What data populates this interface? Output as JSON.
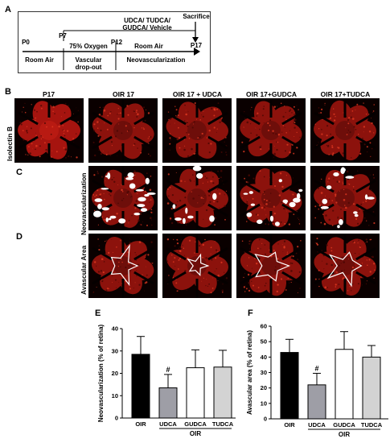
{
  "panel_labels": {
    "a": "A",
    "b": "B",
    "c": "C",
    "d": "D",
    "e": "E",
    "f": "F"
  },
  "timeline": {
    "treatment": "UDCA/ TUDCA/\nGUDCA/ Vehicle",
    "sacrifice": "Sacrifice",
    "p0": "P0",
    "p7": "P7",
    "p12": "P12",
    "p17": "P17",
    "room_air_1": "Room Air",
    "oxygen": "75% Oxygen",
    "room_air_2": "Room Air",
    "vascular_dropout": "Vascular\ndrop-out",
    "neovascularization": "Neovascularization"
  },
  "grid": {
    "columns": [
      "P17",
      "OIR 17",
      "OIR 17 + UDCA",
      "OIR 17+GUDCA",
      "OIR 17+TUDCA"
    ],
    "rows": [
      "Isolectin B",
      "Neovascularization",
      "Avascular Area"
    ]
  },
  "chart_data": [
    {
      "type": "bar",
      "ylabel": "Neovascularization (% of retina)",
      "categories": [
        "OIR",
        "UDCA",
        "GUDCA",
        "TUDCA"
      ],
      "group_label": "OIR",
      "values": [
        28.5,
        13.5,
        22.5,
        22.8
      ],
      "errors": [
        8.0,
        6.0,
        8.0,
        7.5
      ],
      "colors": [
        "#000000",
        "#9e9ea6",
        "#ffffff",
        "#d3d3d3"
      ],
      "annotations": [
        {
          "category": "UDCA",
          "text": "#"
        }
      ],
      "ylim": [
        0,
        40
      ],
      "yticks": [
        0,
        10,
        20,
        30,
        40
      ]
    },
    {
      "type": "bar",
      "ylabel": "Avascular area (% of retina)",
      "categories": [
        "OIR",
        "UDCA",
        "GUDCA",
        "TUDCA"
      ],
      "group_label": "OIR",
      "values": [
        43,
        22,
        45,
        40
      ],
      "errors": [
        8.5,
        7.5,
        11.5,
        7.5
      ],
      "colors": [
        "#000000",
        "#9e9ea6",
        "#ffffff",
        "#d3d3d3"
      ],
      "annotations": [
        {
          "category": "UDCA",
          "text": "#"
        }
      ],
      "ylim": [
        0,
        60
      ],
      "yticks": [
        0,
        10,
        20,
        30,
        40,
        50,
        60
      ]
    }
  ]
}
